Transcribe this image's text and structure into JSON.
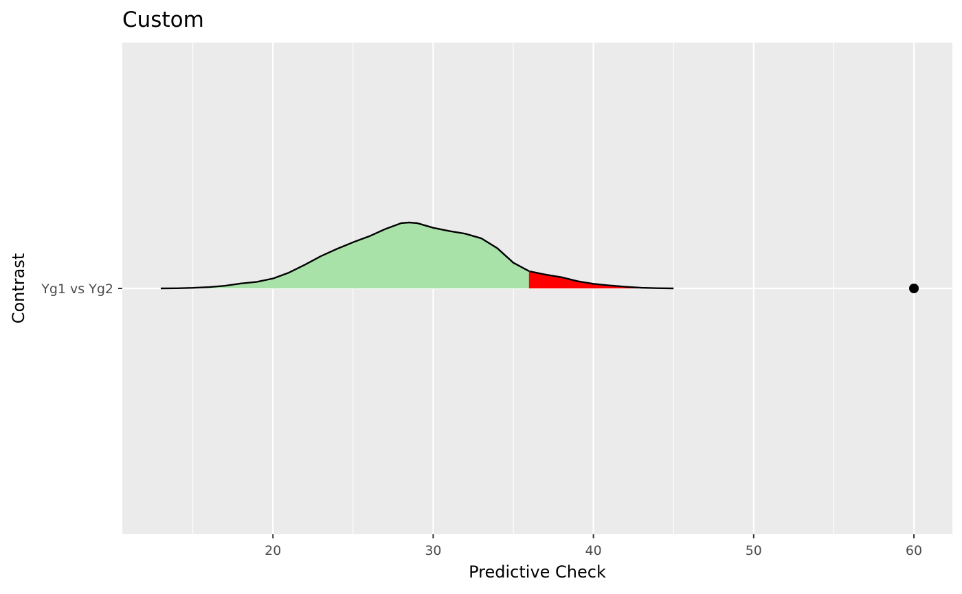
{
  "chart_data": {
    "type": "density",
    "title": "Custom",
    "xlabel": "Predictive Check",
    "ylabel": "Contrast",
    "xlim": [
      10.6,
      62.4
    ],
    "x_ticks": [
      20,
      30,
      40,
      50,
      60
    ],
    "grid": true,
    "categories": [
      "Yg1 vs Yg2"
    ],
    "series": [
      {
        "category": "Yg1 vs Yg2",
        "density": {
          "x": [
            13,
            14,
            15,
            16,
            17,
            18,
            19,
            20,
            21,
            22,
            23,
            24,
            25,
            26,
            27,
            28,
            28.5,
            29,
            30,
            31,
            32,
            33,
            34,
            35,
            36,
            37,
            38,
            39,
            40,
            41,
            42,
            43,
            44,
            45
          ],
          "height": [
            0.0,
            0.002,
            0.008,
            0.02,
            0.04,
            0.075,
            0.1,
            0.15,
            0.24,
            0.36,
            0.49,
            0.6,
            0.7,
            0.79,
            0.9,
            0.99,
            1.0,
            0.99,
            0.92,
            0.87,
            0.83,
            0.76,
            0.61,
            0.39,
            0.26,
            0.21,
            0.17,
            0.11,
            0.07,
            0.045,
            0.025,
            0.01,
            0.003,
            0.0
          ]
        },
        "threshold": 36,
        "observed": 60
      }
    ],
    "colors": {
      "below_threshold": "#A9E2A9",
      "above_threshold": "#FF0000",
      "outline": "#000000",
      "observed_point": "#000000",
      "panel_background": "#EBEBEB",
      "grid": "#FFFFFF"
    }
  }
}
